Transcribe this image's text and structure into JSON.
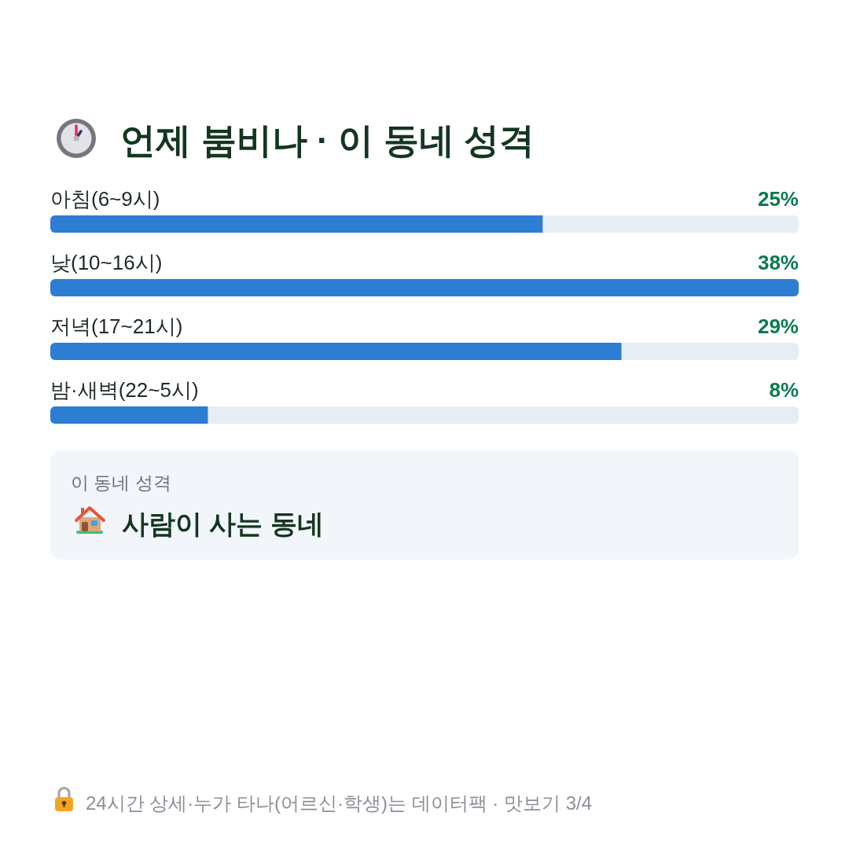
{
  "chart_data": {
    "type": "bar",
    "orientation": "horizontal",
    "title": "언제 붐비나 · 이 동네 성격",
    "categories": [
      "아침(6~9시)",
      "낮(10~16시)",
      "저녁(17~21시)",
      "밤·새벽(22~5시)"
    ],
    "values": [
      25,
      38,
      29,
      8
    ],
    "value_labels": [
      "25%",
      "38%",
      "29%",
      "8%"
    ],
    "color": "#2d7dd2",
    "xlim": [
      0,
      38
    ],
    "annotations": [
      "이 동네 성격",
      "사람이 사는 동네",
      "24시간 상세·누가 타나(어르신·학생)는 데이터팩 · 맛보기 3/4"
    ]
  }
}
